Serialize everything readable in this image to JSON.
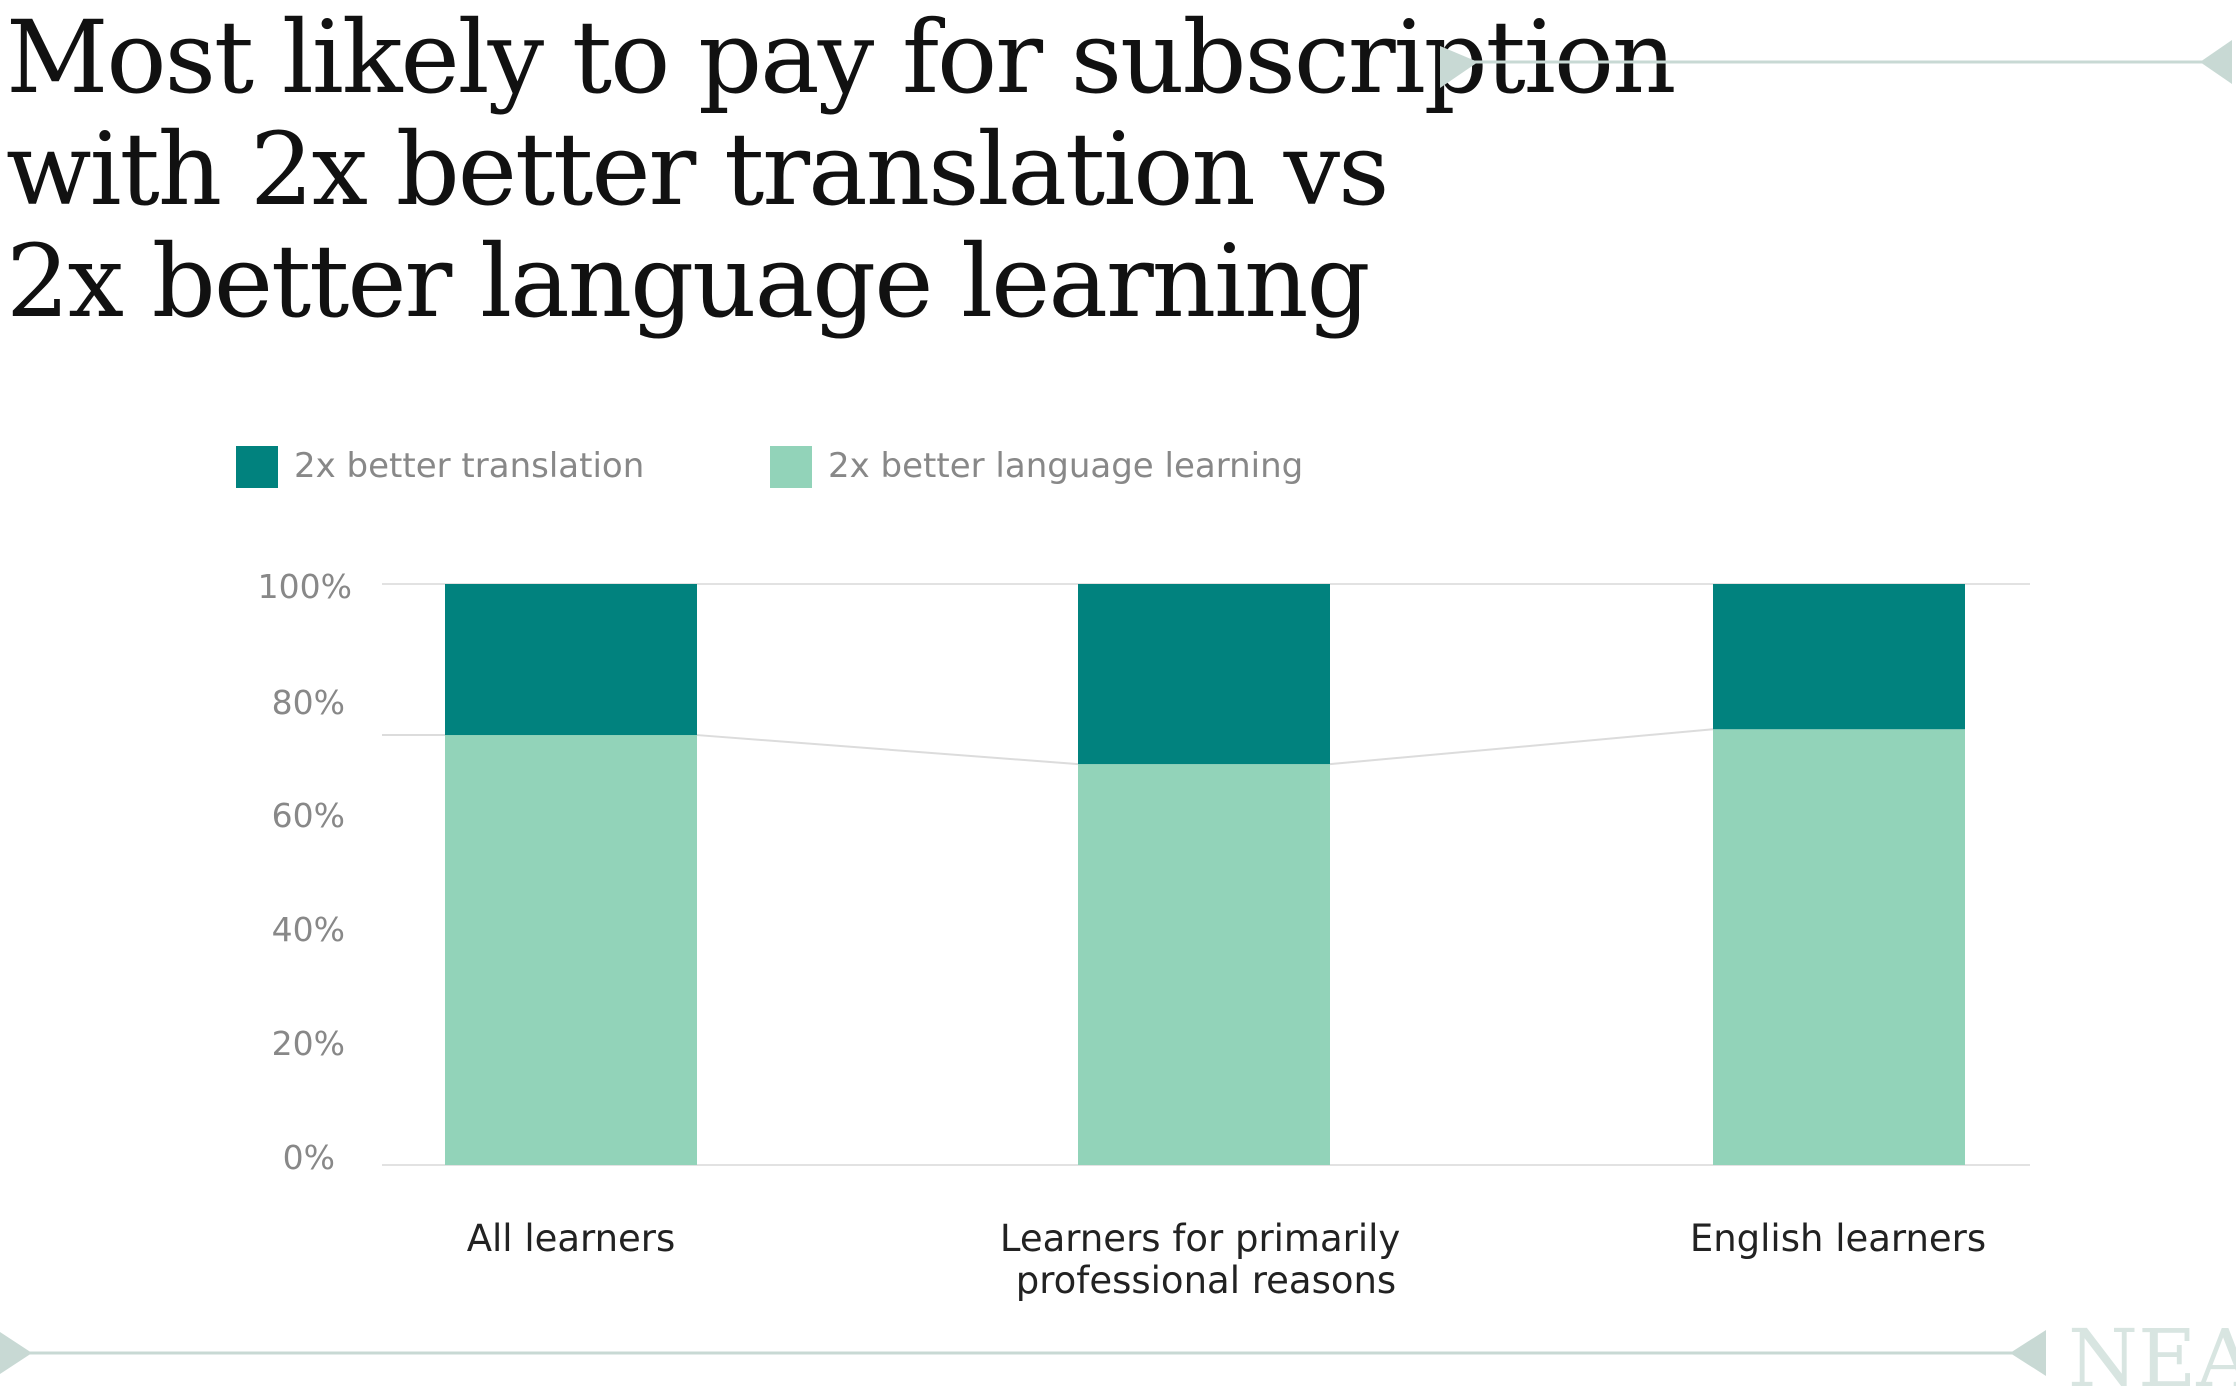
{
  "slide": {
    "title_lines": [
      "Most likely to pay for subscription",
      "with 2x better translation vs",
      "2x better language learning"
    ],
    "logo_text": "NEA"
  },
  "colors": {
    "translation": "#01827e",
    "language_learning": "#92d3b9",
    "gridline": "#e2e2e2",
    "connector": "#dcdcdc",
    "decor_line": "#c8d9d4"
  },
  "chart_data": {
    "type": "bar",
    "stacked": true,
    "title": "Most likely to pay for subscription with 2x better translation vs 2x better language learning",
    "categories": [
      [
        "All learners"
      ],
      [
        "Learners for primarily",
        "professional reasons"
      ],
      [
        "English learners"
      ]
    ],
    "series": [
      {
        "name": "2x better language learning",
        "values": [
          74,
          69,
          75
        ]
      },
      {
        "name": "2x better translation",
        "values": [
          26,
          31,
          25
        ]
      }
    ],
    "legend": [
      "2x better translation",
      "2x better language learning"
    ],
    "legend_position": "top-left",
    "yticks": [
      "0%",
      "20%",
      "40%",
      "60%",
      "80%",
      "100%"
    ],
    "ylim": [
      0,
      100
    ],
    "xlabel": "",
    "ylabel": "",
    "grid": true
  }
}
